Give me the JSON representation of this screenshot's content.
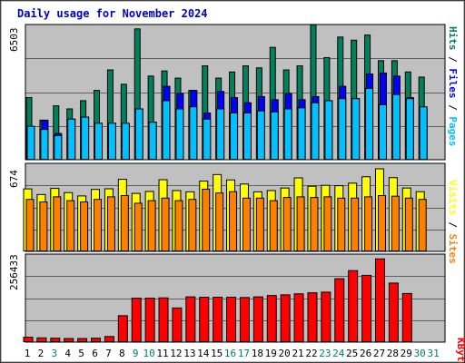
{
  "title": "Daily usage for November 2024",
  "colors": {
    "background": "#c0c0c0",
    "title": "#0000c0",
    "hits": "#00805c",
    "files": "#0000ff",
    "pages": "#00c0ff",
    "visits": "#ffff00",
    "sites": "#ff8000",
    "kbytes": "#ff0000",
    "weekday_label": "#000000",
    "weekend_label": "#00805c"
  },
  "labels": {
    "top_max": "6503",
    "mid_max": "674",
    "bot_max": "256433",
    "side_top": [
      "Pages",
      "Files",
      "Hits"
    ],
    "side_mid": [
      "Sites",
      "Visits"
    ],
    "side_bot": "KBytes",
    "separator": " / "
  },
  "chart_data": {
    "type": "bar",
    "title": "Daily usage for November 2024",
    "categories": [
      "1",
      "2",
      "3",
      "4",
      "5",
      "6",
      "7",
      "8",
      "9",
      "10",
      "11",
      "12",
      "13",
      "14",
      "15",
      "16",
      "17",
      "18",
      "19",
      "20",
      "21",
      "22",
      "23",
      "24",
      "25",
      "26",
      "27",
      "28",
      "29",
      "30",
      "31"
    ],
    "weekend_days": [
      "3",
      "9",
      "10",
      "16",
      "17",
      "23",
      "24",
      "30",
      "31"
    ],
    "panels": [
      {
        "name": "top",
        "ymax": 6503,
        "series": [
          {
            "name": "Hits",
            "values": [
              3050,
              1950,
              2650,
              2500,
              2900,
              3400,
              4400,
              3700,
              6400,
              4100,
              4350,
              4000,
              3400,
              4600,
              4000,
              4300,
              4600,
              4500,
              5500,
              4400,
              4600,
              6600,
              5000,
              6000,
              5850,
              6100,
              4850,
              4850,
              4300,
              4050,
              null
            ]
          },
          {
            "name": "Files",
            "values": [
              1350,
              1950,
              1300,
              2000,
              2100,
              1800,
              1800,
              1700,
              2500,
              1850,
              3600,
              3250,
              3400,
              2300,
              3350,
              3050,
              2800,
              3100,
              2950,
              3250,
              2950,
              3100,
              2900,
              3600,
              3000,
              4200,
              4250,
              4100,
              3050,
              2500,
              null
            ]
          },
          {
            "name": "Pages",
            "values": [
              1650,
              1500,
              1200,
              2000,
              2100,
              1800,
              1800,
              1800,
              2500,
              1850,
              2900,
              2500,
              2600,
              2000,
              2500,
              2300,
              2300,
              2400,
              2350,
              2500,
              2550,
              2800,
              2900,
              3000,
              3000,
              3500,
              2700,
              3200,
              3000,
              2600,
              null
            ]
          }
        ]
      },
      {
        "name": "middle",
        "ymax": 674,
        "series": [
          {
            "name": "Visits",
            "values": [
              492,
              448,
              496,
              463,
              437,
              488,
              493,
              567,
              457,
              472,
              564,
              479,
              469,
              553,
              604,
              562,
              530,
              469,
              479,
              499,
              578,
              513,
              520,
              517,
              537,
              587,
              649,
              580,
              499,
              470,
              null
            ]
          },
          {
            "name": "Sites",
            "values": [
              410,
              390,
              430,
              400,
              390,
              410,
              430,
              440,
              380,
              400,
              420,
              400,
              410,
              490,
              460,
              470,
              420,
              420,
              400,
              425,
              430,
              425,
              430,
              420,
              420,
              430,
              440,
              435,
              420,
              410,
              null
            ]
          }
        ]
      },
      {
        "name": "bottom",
        "ymax": 256433,
        "series": [
          {
            "name": "KBytes",
            "values": [
              16000,
              14000,
              13000,
              12000,
              12000,
              13000,
              18000,
              80000,
              132000,
              132000,
              133000,
              103000,
              136000,
              135000,
              135000,
              135000,
              134000,
              136000,
              140000,
              142000,
              145000,
              148000,
              150000,
              190000,
              214000,
              200000,
              249000,
              177000,
              146000,
              0,
              null
            ]
          }
        ]
      }
    ]
  }
}
